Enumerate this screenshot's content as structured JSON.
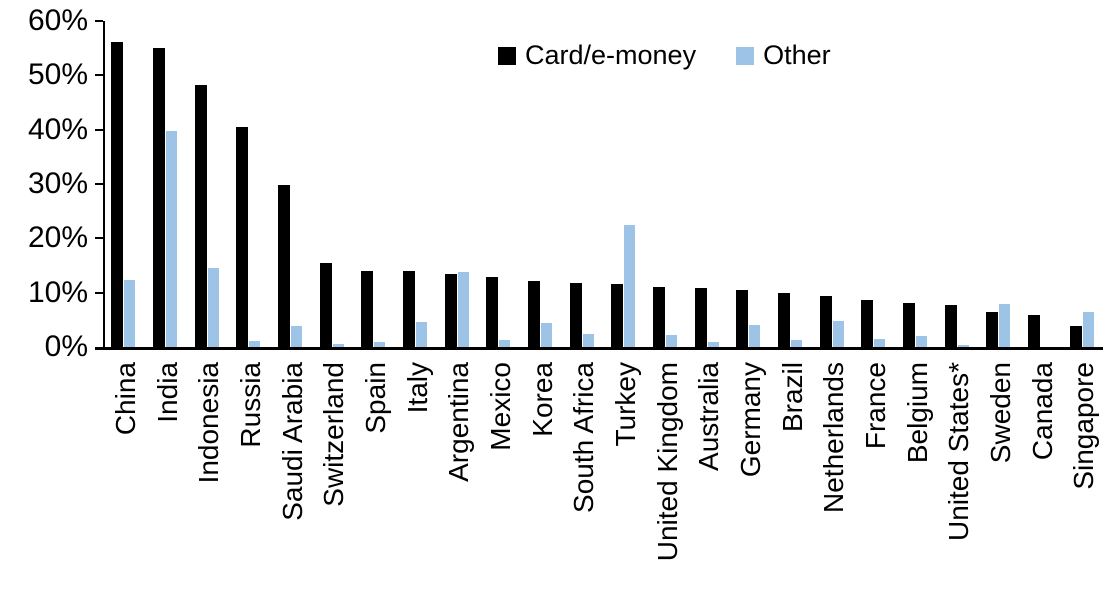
{
  "chart_data": {
    "type": "bar",
    "title": "",
    "xlabel": "",
    "ylabel": "",
    "ylim": [
      0,
      60
    ],
    "y_tick_labels": [
      "0%",
      "10%",
      "20%",
      "30%",
      "40%",
      "50%",
      "60%"
    ],
    "grid": false,
    "legend_position": "top-center",
    "categories": [
      "China",
      "India",
      "Indonesia",
      "Russia",
      "Saudi Arabia",
      "Switzerland",
      "Spain",
      "Italy",
      "Argentina",
      "Mexico",
      "Korea",
      "South Africa",
      "Turkey",
      "United Kingdom",
      "Australia",
      "Germany",
      "Brazil",
      "Netherlands",
      "France",
      "Belgium",
      "United States*",
      "Sweden",
      "Canada",
      "Singapore"
    ],
    "series": [
      {
        "name": "Card/e-money",
        "color": "#000000",
        "values": [
          56.2,
          55.0,
          48.3,
          40.5,
          29.8,
          15.5,
          14.0,
          14.0,
          13.4,
          12.8,
          12.1,
          11.7,
          11.6,
          11.0,
          10.8,
          10.4,
          9.9,
          9.3,
          8.7,
          8.1,
          7.8,
          6.4,
          5.9,
          3.9
        ]
      },
      {
        "name": "Other",
        "color": "#9DC3E6",
        "values": [
          12.3,
          39.7,
          14.6,
          1.1,
          3.8,
          0.6,
          0.9,
          4.6,
          13.8,
          1.2,
          4.5,
          2.4,
          22.4,
          2.2,
          1.0,
          4.0,
          1.2,
          4.8,
          1.5,
          2.0,
          0.3,
          7.9,
          0,
          6.5
        ]
      }
    ]
  }
}
